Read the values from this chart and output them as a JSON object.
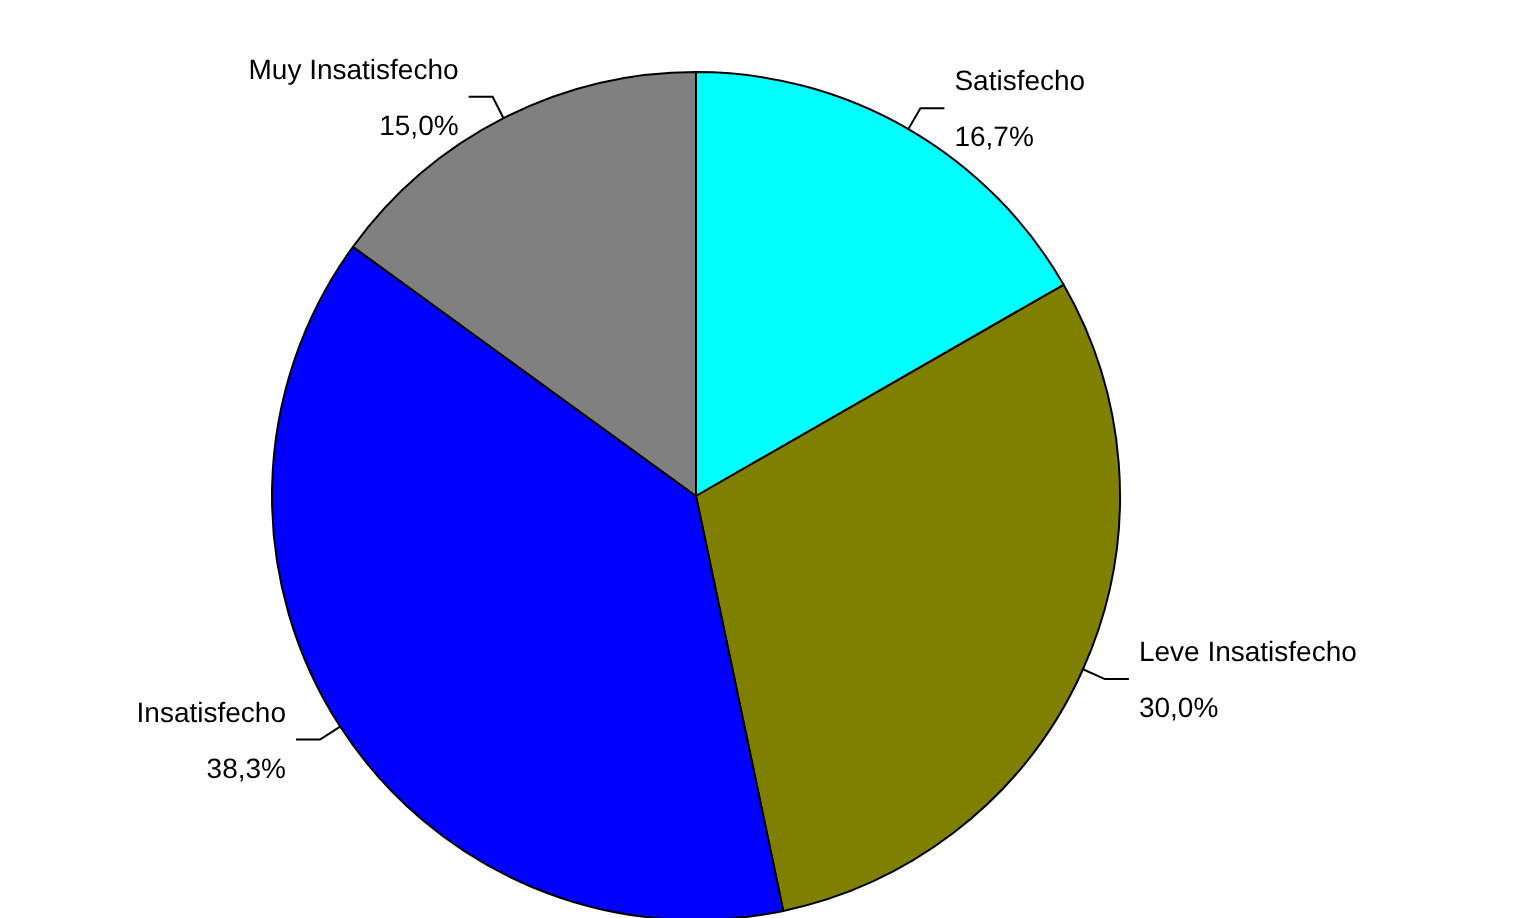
{
  "chart_data": {
    "type": "pie",
    "categories": [
      "Satisfecho",
      "Leve Insatisfecho",
      "Insatisfecho",
      "Muy Insatisfecho"
    ],
    "values": [
      16.7,
      30.0,
      38.3,
      15.0
    ],
    "colors": [
      "#00ffff",
      "#808000",
      "#0000ff",
      "#808080"
    ],
    "value_labels": [
      "16,7%",
      "30,0%",
      "38,3%",
      "15,0%"
    ],
    "legend": false
  }
}
